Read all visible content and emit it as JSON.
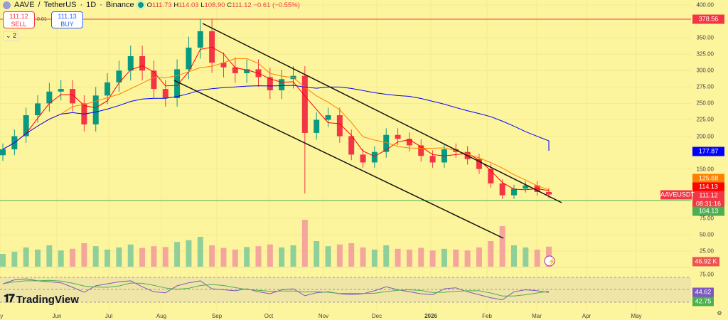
{
  "header": {
    "symbol": "AAVE",
    "quote": "TetherUS",
    "interval": "1D",
    "exchange": "Binance",
    "sep": "/",
    "dotsep": "·",
    "open": "111.73",
    "high": "114.03",
    "low": "108.90",
    "close": "111.12",
    "change": "−0.61 (−0.55%)",
    "o_label": "O",
    "h_label": "H",
    "l_label": "L",
    "c_label": "C"
  },
  "trade": {
    "sell_price": "111.12",
    "sell_label": "SELL",
    "buy_price": "111.13",
    "buy_label": "BUY",
    "spread": "0.01"
  },
  "indicators_collapsed": "2",
  "price_axis": [
    "400.00",
    "350.00",
    "325.00",
    "300.00",
    "275.00",
    "250.00",
    "225.00",
    "200.00",
    "150.00",
    "75.00",
    "50.00",
    "25.00"
  ],
  "price_axis_values": [
    400,
    350,
    325,
    300,
    275,
    250,
    225,
    200,
    150,
    75,
    50,
    25
  ],
  "tags": {
    "hline": "378.56",
    "ma_long": "177.87",
    "ma_mid": "125.68",
    "ma_short": "114.13",
    "last": "111.12",
    "countdown": "08:31:16",
    "symbol": "AAVEUSDT",
    "ma_low": "104.13",
    "volume": "46.92 K",
    "rsi": "44.62",
    "rsi_ma": "42.75",
    "rsi_top": "75.00"
  },
  "colors": {
    "up": "#089981",
    "down": "#f23645",
    "ma_long": "#0000ff",
    "ma_mid": "#ff7f00",
    "ma_short": "#ff0000",
    "rsi": "#7e57c2",
    "rsi_ma": "#4caf50",
    "hline": "#f23645",
    "bg": "#fdf59d"
  },
  "time_axis": [
    "ay",
    "Jun",
    "Jul",
    "Aug",
    "Sep",
    "Oct",
    "Nov",
    "Dec",
    "2026",
    "Feb",
    "Mar",
    "Apr",
    "May"
  ],
  "brand": "TradingView",
  "chart_data": {
    "type": "candlestick",
    "interval_plotted": "weekly approximation",
    "closes": [
      180,
      200,
      232,
      250,
      268,
      272,
      250,
      218,
      262,
      282,
      300,
      322,
      300,
      272,
      258,
      302,
      335,
      360,
      312,
      305,
      296,
      302,
      290,
      270,
      287,
      292,
      205,
      225,
      232,
      200,
      172,
      160,
      176,
      202,
      196,
      186,
      170,
      160,
      180,
      176,
      165,
      150,
      128,
      110,
      120,
      125,
      115,
      111.12
    ],
    "volumes": [
      30,
      35,
      45,
      40,
      50,
      38,
      42,
      55,
      48,
      40,
      45,
      52,
      44,
      48,
      46,
      58,
      62,
      70,
      50,
      44,
      40,
      46,
      48,
      52,
      45,
      50,
      110,
      60,
      48,
      52,
      55,
      45,
      40,
      50,
      42,
      40,
      44,
      38,
      42,
      40,
      38,
      45,
      60,
      95,
      50,
      45,
      40,
      46.92
    ],
    "rsi": [
      62,
      70,
      72,
      68,
      66,
      64,
      55,
      45,
      58,
      62,
      66,
      68,
      56,
      46,
      44,
      58,
      64,
      68,
      52,
      50,
      48,
      52,
      46,
      42,
      50,
      52,
      38,
      44,
      46,
      42,
      40,
      42,
      48,
      56,
      50,
      46,
      42,
      40,
      52,
      54,
      46,
      40,
      34,
      30,
      46,
      50,
      48,
      44.62
    ],
    "ylim": [
      25,
      400
    ]
  }
}
